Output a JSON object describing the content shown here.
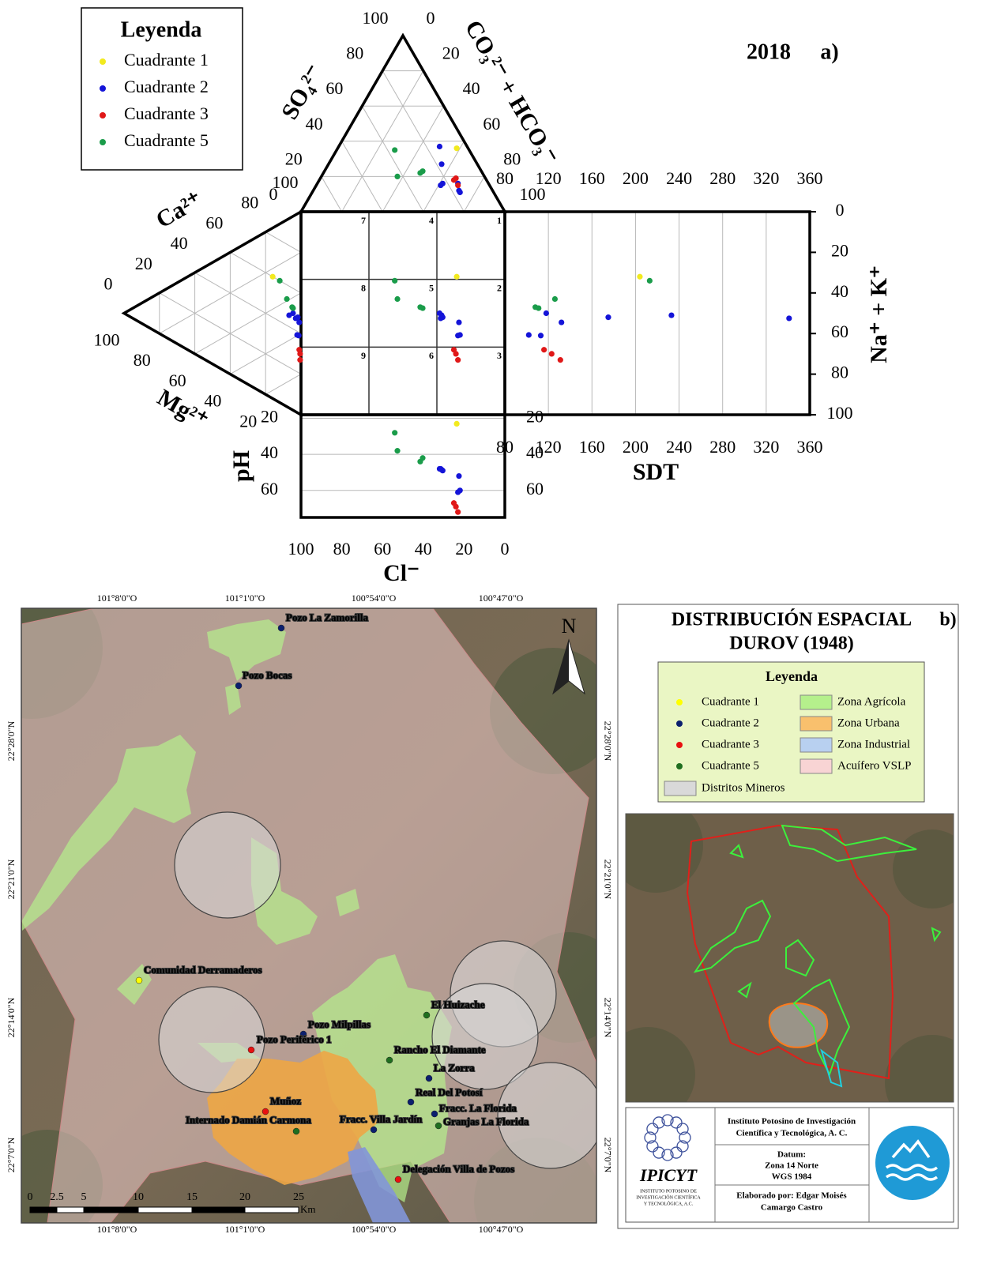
{
  "chart_data": {
    "type": "durov",
    "year": "2018",
    "panel": "a)",
    "legend_title": "Leyenda",
    "series": [
      {
        "name": "Cuadrante 1",
        "color": "#f2ea1e",
        "cl": [
          23.6
        ],
        "so4": [
          36
        ],
        "mg": [
          16
        ],
        "na_k": [
          32
        ],
        "sdt": [
          204
        ],
        "ph": [
          23
        ]
      },
      {
        "name": "Cuadrante 2",
        "color": "#1414d8",
        "cl": [
          32,
          31,
          30.5,
          31.5,
          22.5,
          22,
          23
        ],
        "so4": [
          37,
          27,
          16,
          15,
          12,
          11,
          16
        ],
        "mg": [
          4.5,
          6.7,
          1.8,
          3,
          1,
          2.2,
          1.3
        ],
        "na_k": [
          50,
          51,
          52,
          52.5,
          54.5,
          60.7,
          61
        ],
        "sdt": [
          118,
          233,
          175,
          341,
          132,
          102,
          113
        ],
        "ph": [
          48,
          48.5,
          49,
          48,
          52,
          60,
          61
        ]
      },
      {
        "name": "Cuadrante 3",
        "color": "#e01818",
        "cl": [
          25,
          24,
          23
        ],
        "so4": [
          18,
          19,
          15
        ],
        "mg": [
          1,
          0.5,
          0.5
        ],
        "na_k": [
          68,
          70,
          73
        ],
        "sdt": [
          116,
          123,
          131
        ],
        "ph": [
          67,
          69,
          72
        ]
      },
      {
        "name": "Cuadrante 5",
        "color": "#1a9c4a",
        "cl": [
          54,
          52.7,
          41.5,
          40.3
        ],
        "so4": [
          35,
          20,
          22,
          23
        ],
        "mg": [
          12,
          8,
          5,
          4.5
        ],
        "na_k": [
          34,
          43,
          47,
          47.5
        ],
        "sdt": [
          213,
          126,
          108,
          111
        ],
        "ph": [
          28,
          38,
          44,
          42
        ]
      }
    ],
    "zone_labels": [
      "1",
      "2",
      "3",
      "4",
      "5",
      "6",
      "7",
      "8",
      "9"
    ],
    "so4_label": "SO₄²⁻",
    "hco3_label": "CO₃²⁻ + HCO₃⁻",
    "ca_label": "Ca²⁺",
    "mg_label": "Mg²⁺",
    "na_k_label": "Na⁺ + K⁺",
    "sdt_label": "SDT",
    "ph_label": "pH",
    "cl_label": "Cl⁻",
    "ternary_lim": [
      0,
      100
    ],
    "so4_ticks": [
      0,
      20,
      40,
      60,
      80,
      100
    ],
    "hco3_ticks": [
      0,
      20,
      40,
      60,
      80,
      100
    ],
    "ca_ticks": [
      0,
      20,
      40,
      60,
      80,
      100
    ],
    "mg_ticks": [
      20,
      40,
      60,
      80,
      100
    ],
    "sdt_lim": [
      80,
      360
    ],
    "sdt_ticks": [
      80,
      120,
      160,
      200,
      240,
      280,
      320,
      360
    ],
    "na_k_lim": [
      0,
      100
    ],
    "na_k_ticks": [
      0,
      20,
      40,
      60,
      80,
      100
    ],
    "cl_lim": [
      100,
      0
    ],
    "cl_ticks": [
      100,
      80,
      60,
      40,
      20,
      0
    ],
    "ph_lim": [
      18,
      75
    ],
    "ph_ticks": [
      20,
      40,
      60
    ]
  },
  "panel_b": {
    "title": [
      "DISTRIBUCIÓN ESPACIAL",
      "DUROV (1948)"
    ],
    "panel": "b)",
    "legend_title": "Leyenda",
    "points": [
      {
        "name": "Cuadrante 1",
        "color": "#ffff00",
        "sites": [
          "Comunidad Derramaderos"
        ]
      },
      {
        "name": "Cuadrante 2",
        "color": "#0b1f6e",
        "sites": [
          "Pozo La Zamorilla",
          "Pozo Bocas",
          "Pozo Milpillas",
          "La Zorra",
          "Real Del Potosí",
          "Fracc. Villa Jardín",
          "Fracc. La Florida"
        ]
      },
      {
        "name": "Cuadrante 3",
        "color": "#e81010",
        "sites": [
          "Pozo Periférico 1",
          "Muñoz",
          "Delegación Villa de Pozos"
        ]
      },
      {
        "name": "Cuadrante 5",
        "color": "#1f6e1f",
        "sites": [
          "El Huizache",
          "Rancho El Diamante",
          "Internado Damián Carmona",
          "Granjas La Florida"
        ]
      }
    ],
    "zones": [
      {
        "name": "Zona Agrícola",
        "color": "#b5f08c"
      },
      {
        "name": "Zona Urbana",
        "color": "#f9c06d"
      },
      {
        "name": "Zona Industrial",
        "color": "#b8d0f0"
      },
      {
        "name": "Acuífero VSLP",
        "color": "#f8d4d4"
      },
      {
        "name": "Distritos Mineros",
        "color": "#d9d9d9"
      }
    ],
    "lon_labels": [
      "101°8'0\"O",
      "101°1'0\"O",
      "100°54'0\"O",
      "100°47'0\"O"
    ],
    "lat_labels": [
      "22°28'0\"N",
      "22°21'0\"N",
      "22°14'0\"N",
      "22°7'0\"N"
    ],
    "scale_labels": [
      0,
      2.5,
      5,
      10,
      15,
      20,
      25
    ],
    "scale_unit": "Km",
    "north": "N",
    "institution": [
      "Instituto Potosino de Investigación",
      "Científica y Tecnológica, A. C."
    ],
    "datum": [
      "Datum:",
      "Zona 14 Norte",
      "WGS 1984"
    ],
    "author": [
      "Elaborado por: Edgar Moisés",
      "Camargo Castro"
    ],
    "logo": "IPICYT",
    "logo_subtitle": [
      "INSTITUTO POTOSINO DE",
      "INVESTIGACIÓN CIENTÍFICA",
      "Y TECNOLÓGICA, A.C."
    ]
  }
}
